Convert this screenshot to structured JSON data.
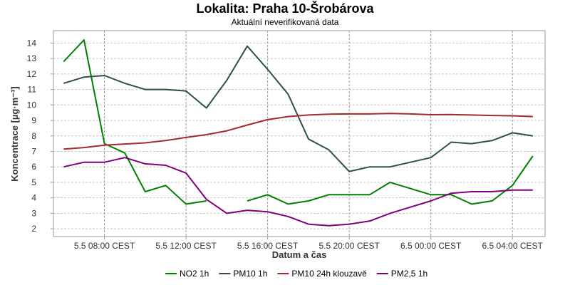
{
  "chart_data": {
    "type": "line",
    "title": "Lokalita: Praha 10-Šrobárova",
    "subtitle": "Aktuální neverifikovaná data",
    "xlabel": "Datum a čas",
    "ylabel": "Koncentrace [µg·m⁻³]",
    "ylim": [
      1.5,
      14.8
    ],
    "y_ticks": [
      2,
      3,
      4,
      5,
      6,
      7,
      8,
      9,
      10,
      11,
      12,
      13,
      14
    ],
    "x_ticks": [
      {
        "hour": 8,
        "label": "5.5 08:00 CEST"
      },
      {
        "hour": 12,
        "label": "5.5 12:00 CEST"
      },
      {
        "hour": 16,
        "label": "5.5 16:00 CEST"
      },
      {
        "hour": 20,
        "label": "5.5 20:00 CEST"
      },
      {
        "hour": 24,
        "label": "6.5 00:00 CEST"
      },
      {
        "hour": 28,
        "label": "6.5 04:00 CEST"
      }
    ],
    "x_hour_range": [
      5.5,
      29.6
    ],
    "grid": true,
    "legend_position": "bottom",
    "series": [
      {
        "name": "NO2 1h",
        "color": "#008000",
        "values": [
          [
            6,
            12.8
          ],
          [
            7,
            14.2
          ],
          [
            8,
            7.5
          ],
          [
            9,
            6.9
          ],
          [
            10,
            4.4
          ],
          [
            11,
            4.8
          ],
          [
            12,
            3.6
          ],
          [
            13,
            3.8
          ],
          null,
          [
            15,
            3.8
          ],
          [
            16,
            4.2
          ],
          [
            17,
            3.6
          ],
          [
            18,
            3.8
          ],
          [
            19,
            4.2
          ],
          [
            20,
            4.2
          ],
          [
            21,
            4.2
          ],
          [
            22,
            5.0
          ],
          [
            23,
            4.6
          ],
          [
            24,
            4.2
          ],
          [
            25,
            4.2
          ],
          [
            26,
            3.6
          ],
          [
            27,
            3.8
          ],
          [
            28,
            4.8
          ],
          [
            29,
            6.7
          ]
        ]
      },
      {
        "name": "PM10 1h",
        "color": "#2f4f4f",
        "values": [
          [
            6,
            11.4
          ],
          [
            7,
            11.8
          ],
          [
            8,
            11.9
          ],
          [
            9,
            11.4
          ],
          [
            10,
            11.0
          ],
          [
            11,
            11.0
          ],
          [
            12,
            10.9
          ],
          [
            13,
            9.8
          ],
          [
            14,
            11.6
          ],
          [
            15,
            13.8
          ],
          [
            16,
            12.3
          ],
          [
            17,
            10.7
          ],
          [
            18,
            7.8
          ],
          [
            19,
            7.1
          ],
          [
            20,
            5.7
          ],
          [
            21,
            6.0
          ],
          [
            22,
            6.0
          ],
          [
            23,
            6.3
          ],
          [
            24,
            6.6
          ],
          [
            25,
            7.6
          ],
          [
            26,
            7.5
          ],
          [
            27,
            7.7
          ],
          [
            28,
            8.2
          ],
          [
            29,
            8.0
          ]
        ]
      },
      {
        "name": "PM10 24h klouzavě",
        "color": "#a52a2a",
        "values": [
          [
            6,
            7.15
          ],
          [
            7,
            7.25
          ],
          [
            8,
            7.4
          ],
          [
            9,
            7.48
          ],
          [
            10,
            7.55
          ],
          [
            11,
            7.7
          ],
          [
            12,
            7.9
          ],
          [
            13,
            8.08
          ],
          [
            14,
            8.33
          ],
          [
            15,
            8.7
          ],
          [
            16,
            9.05
          ],
          [
            17,
            9.25
          ],
          [
            18,
            9.35
          ],
          [
            19,
            9.4
          ],
          [
            20,
            9.42
          ],
          [
            21,
            9.42
          ],
          [
            22,
            9.45
          ],
          [
            23,
            9.42
          ],
          [
            24,
            9.37
          ],
          [
            25,
            9.38
          ],
          [
            26,
            9.35
          ],
          [
            27,
            9.32
          ],
          [
            28,
            9.3
          ],
          [
            29,
            9.25
          ]
        ]
      },
      {
        "name": "PM2,5 1h",
        "color": "#800080",
        "values": [
          [
            6,
            6.0
          ],
          [
            7,
            6.3
          ],
          [
            8,
            6.3
          ],
          [
            9,
            6.6
          ],
          [
            10,
            6.2
          ],
          [
            11,
            6.1
          ],
          [
            12,
            5.6
          ],
          [
            13,
            3.9
          ],
          [
            14,
            3.0
          ],
          [
            15,
            3.2
          ],
          [
            16,
            3.1
          ],
          [
            17,
            2.8
          ],
          [
            18,
            2.3
          ],
          [
            19,
            2.2
          ],
          [
            20,
            2.3
          ],
          [
            21,
            2.5
          ],
          [
            22,
            3.0
          ],
          [
            23,
            3.4
          ],
          [
            24,
            3.8
          ],
          [
            25,
            4.3
          ],
          [
            26,
            4.4
          ],
          [
            27,
            4.4
          ],
          [
            28,
            4.5
          ],
          [
            29,
            4.5
          ]
        ]
      }
    ]
  }
}
